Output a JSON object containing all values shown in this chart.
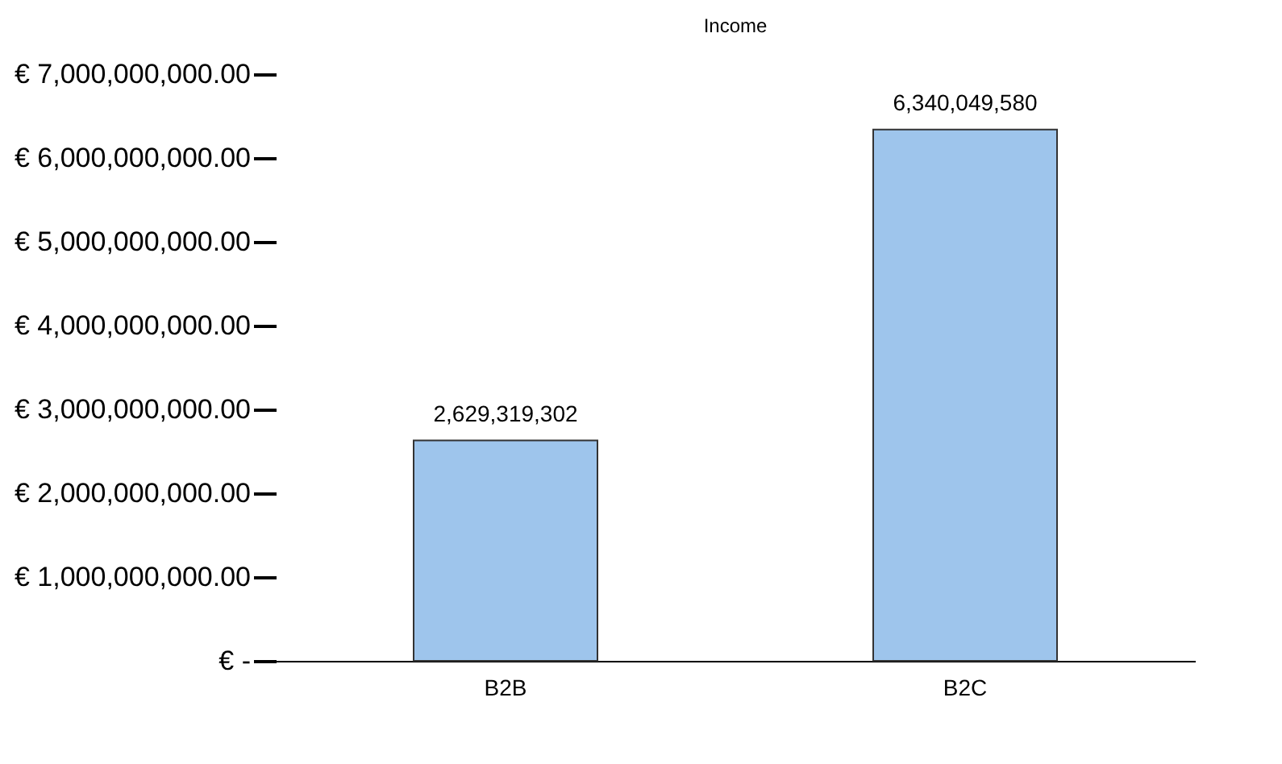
{
  "chart_data": {
    "type": "bar",
    "title": "Income",
    "categories": [
      "B2B",
      "B2C"
    ],
    "series": [
      {
        "color": "#9ec5ec",
        "values": [
          2629319302,
          6340049580
        ],
        "value_labels": [
          "2,629,319,302",
          "6,340,049,580"
        ]
      }
    ],
    "ylim": [
      0,
      7000000000
    ],
    "yticks": [
      {
        "value": 0,
        "label": "€ -"
      },
      {
        "value": 1000000000,
        "label": "€ 1,000,000,000.00"
      },
      {
        "value": 2000000000,
        "label": "€ 2,000,000,000.00"
      },
      {
        "value": 3000000000,
        "label": "€ 3,000,000,000.00"
      },
      {
        "value": 4000000000,
        "label": "€ 4,000,000,000.00"
      },
      {
        "value": 5000000000,
        "label": "€ 5,000,000,000.00"
      },
      {
        "value": 6000000000,
        "label": "€ 6,000,000,000.00"
      },
      {
        "value": 7000000000,
        "label": "€ 7,000,000,000.00"
      }
    ],
    "grid": false
  }
}
